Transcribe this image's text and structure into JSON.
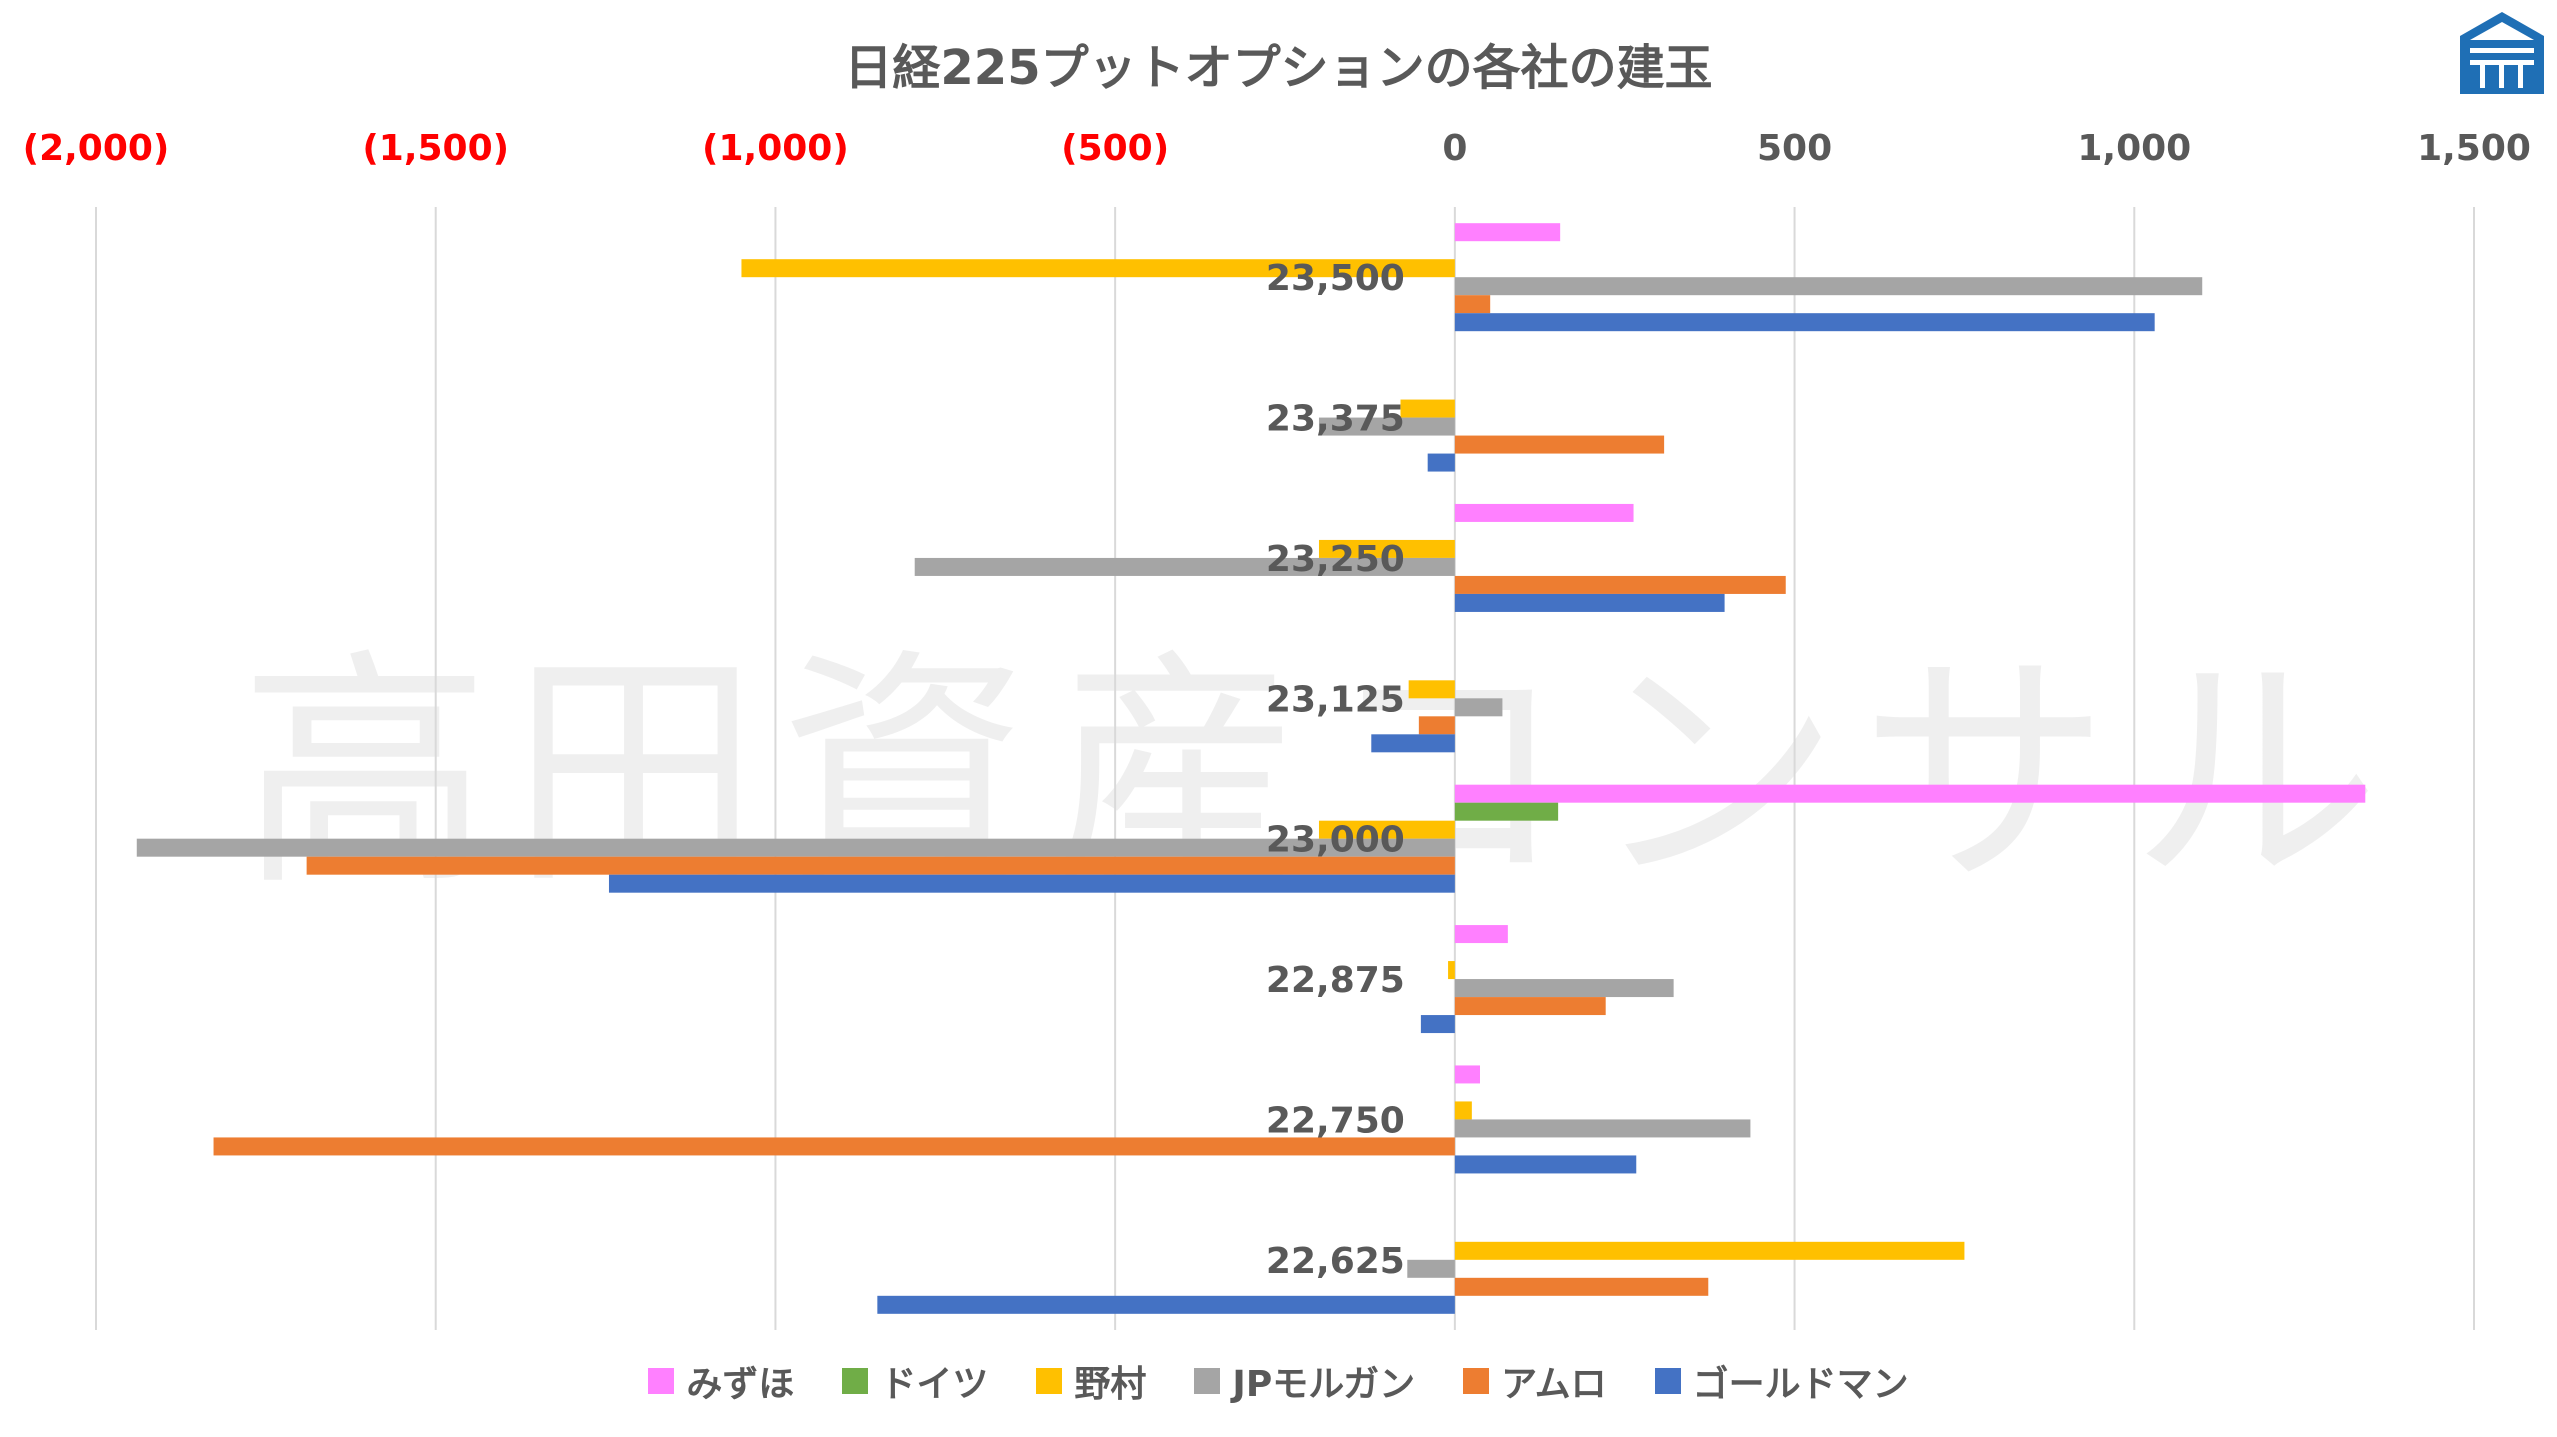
{
  "title": "日経225プットオプションの各社の建玉",
  "watermark": "高田資産コンサル",
  "colors": {
    "negative_tick": "#ff0000",
    "positive_tick": "#595959",
    "grid": "#d9d9d9",
    "logo": "#1f6fb5"
  },
  "chart_data": {
    "type": "bar",
    "orientation": "horizontal",
    "title": "日経225プットオプションの各社の建玉",
    "xlim": [
      -2000,
      1500
    ],
    "x_ticks": [
      {
        "value": -2000,
        "label": "(2,000)"
      },
      {
        "value": -1500,
        "label": "(1,500)"
      },
      {
        "value": -1000,
        "label": "(1,000)"
      },
      {
        "value": -500,
        "label": "(500)"
      },
      {
        "value": 0,
        "label": "0"
      },
      {
        "value": 500,
        "label": "500"
      },
      {
        "value": 1000,
        "label": "1,000"
      },
      {
        "value": 1500,
        "label": "1,500"
      }
    ],
    "categories": [
      "23,500",
      "23,375",
      "23,250",
      "23,125",
      "23,000",
      "22,875",
      "22,750",
      "22,625"
    ],
    "series": [
      {
        "name": "みずほ",
        "color": "#ff80ff",
        "values": [
          155,
          0,
          263,
          0,
          1340,
          78,
          37,
          0
        ]
      },
      {
        "name": "ドイツ",
        "color": "#70ad47",
        "values": [
          0,
          0,
          0,
          0,
          152,
          0,
          0,
          0
        ]
      },
      {
        "name": "野村",
        "color": "#ffc000",
        "values": [
          -1050,
          -80,
          -200,
          -68,
          -200,
          -10,
          25,
          750
        ]
      },
      {
        "name": "JPモルガン",
        "color": "#a5a5a5",
        "values": [
          1100,
          -200,
          -795,
          70,
          -1940,
          322,
          435,
          -70
        ]
      },
      {
        "name": "アムロ",
        "color": "#ed7d31",
        "values": [
          52,
          308,
          487,
          -53,
          -1690,
          222,
          -1827,
          373
        ]
      },
      {
        "name": "ゴールドマン",
        "color": "#4472c4",
        "values": [
          1030,
          -40,
          397,
          -123,
          -1245,
          -50,
          267,
          -850
        ]
      }
    ],
    "grid": true,
    "legend_position": "bottom"
  }
}
